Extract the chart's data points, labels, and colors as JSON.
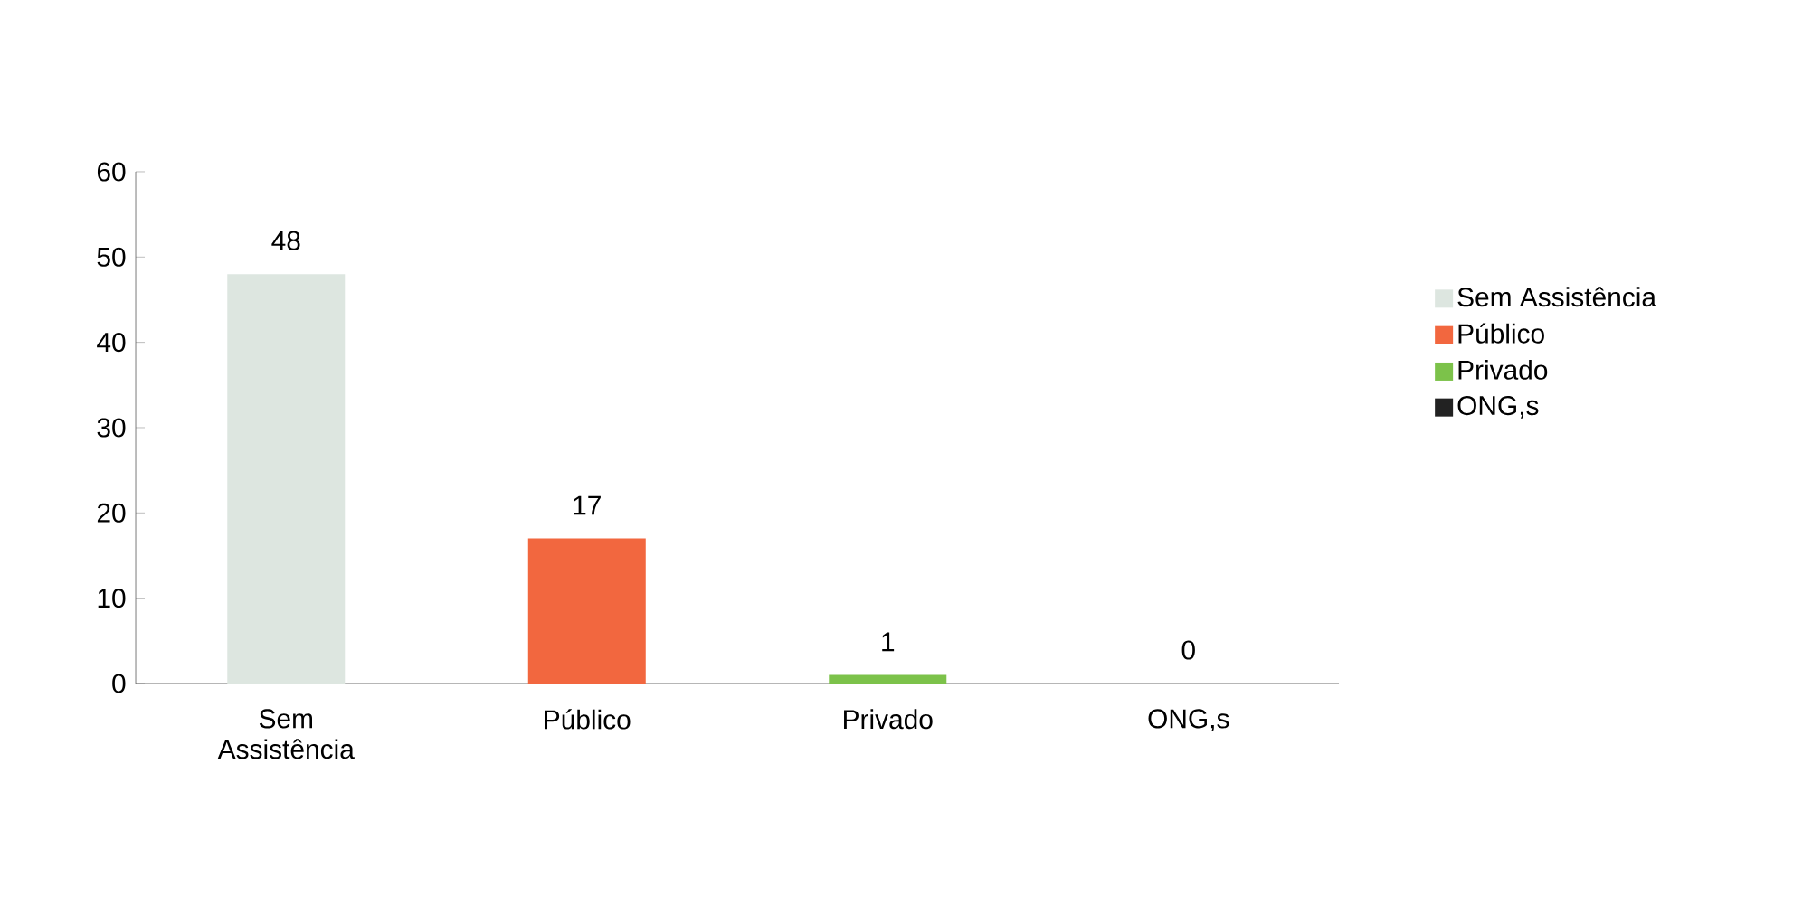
{
  "chart_data": {
    "type": "bar",
    "categories": [
      "Sem Assistência",
      "Público",
      "Privado",
      "ONG,s"
    ],
    "series": [
      {
        "name": "Sem Assistência",
        "color": "#dde6e0",
        "values": [
          48,
          null,
          null,
          null
        ]
      },
      {
        "name": "Público",
        "color": "#f2673f",
        "values": [
          null,
          17,
          null,
          null
        ]
      },
      {
        "name": "Privado",
        "color": "#7cc24a",
        "values": [
          null,
          null,
          1,
          null
        ]
      },
      {
        "name": "ONG,s",
        "color": "#222222",
        "values": [
          null,
          null,
          null,
          0
        ]
      }
    ],
    "ylim": [
      0,
      60
    ],
    "yticks": [
      0,
      10,
      20,
      30,
      40,
      50,
      60
    ],
    "data_labels": true,
    "legend": "right",
    "grid": false
  }
}
